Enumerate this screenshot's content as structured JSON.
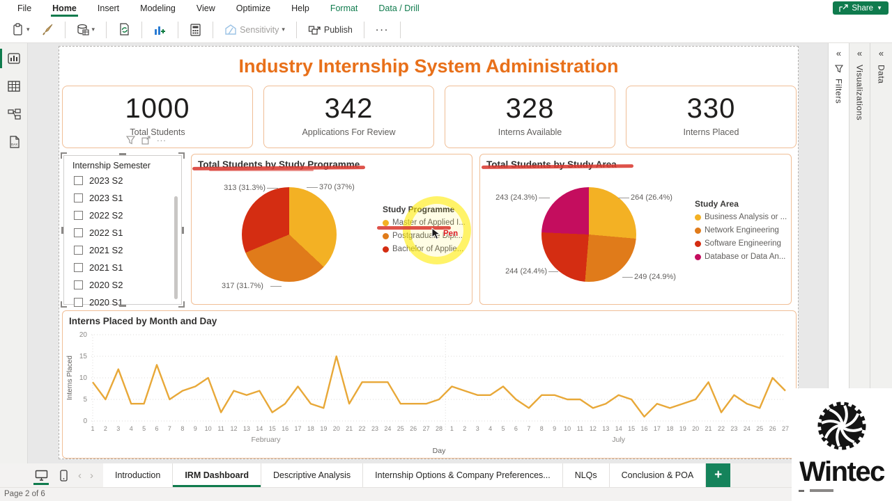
{
  "menu": {
    "items": [
      "File",
      "Home",
      "Insert",
      "Modeling",
      "View",
      "Optimize",
      "Help",
      "Format",
      "Data / Drill"
    ],
    "active_item": "Home",
    "green_items": [
      "Format",
      "Data / Drill"
    ],
    "share": "Share"
  },
  "toolbar": {
    "sensitivity": "Sensitivity",
    "publish": "Publish",
    "more": "...",
    "icons": [
      "paste-icon",
      "format-painter-icon",
      "get-data-icon",
      "refresh-icon",
      "new-visual-icon",
      "new-measure-icon",
      "sensitivity-icon",
      "publish-icon"
    ]
  },
  "panels": {
    "filters": "Filters",
    "visualizations": "Visualizations",
    "data": "Data"
  },
  "report": {
    "title": "Industry Internship System Administration",
    "kpis": [
      {
        "value": "1000",
        "label": "Total Students"
      },
      {
        "value": "342",
        "label": "Applications For Review"
      },
      {
        "value": "328",
        "label": "Interns Available"
      },
      {
        "value": "330",
        "label": "Interns Placed"
      }
    ],
    "slicer": {
      "title": "Internship Semester",
      "options": [
        "2023 S2",
        "2023 S1",
        "2022 S2",
        "2022 S1",
        "2021 S2",
        "2021 S1",
        "2020 S2",
        "2020 S1"
      ]
    },
    "annotation_pen_label": "Pen"
  },
  "chart_data": [
    {
      "type": "pie",
      "title": "Total Students by Study Programme",
      "legend_title": "Study Programme",
      "legend_position": "right",
      "slices": [
        {
          "label": "Master of Applied I...",
          "value": 370,
          "pct": 37.0,
          "color": "#F3B124",
          "callout": "370 (37%)"
        },
        {
          "label": "Postgraduate Dipl...",
          "value": 317,
          "pct": 31.7,
          "color": "#E07B1A",
          "callout": "317 (31.7%)"
        },
        {
          "label": "Bachelor of Applie...",
          "value": 313,
          "pct": 31.3,
          "color": "#D42D12",
          "callout": "313 (31.3%)"
        }
      ]
    },
    {
      "type": "pie",
      "title": "Total Students by Study Area",
      "legend_title": "Study Area",
      "legend_position": "right",
      "slices": [
        {
          "label": "Business Analysis or ...",
          "value": 264,
          "pct": 26.4,
          "color": "#F3B124",
          "callout": "264 (26.4%)"
        },
        {
          "label": "Network Engineering",
          "value": 249,
          "pct": 24.9,
          "color": "#E07B1A",
          "callout": "249 (24.9%)"
        },
        {
          "label": "Software Engineering",
          "value": 244,
          "pct": 24.4,
          "color": "#D42D12",
          "callout": "244 (24.4%)"
        },
        {
          "label": "Database or Data An...",
          "value": 243,
          "pct": 24.3,
          "color": "#C40D5E",
          "callout": "243 (24.3%)"
        }
      ]
    },
    {
      "type": "line",
      "title": "Interns Placed by Month and Day",
      "xlabel": "Day",
      "ylabel": "Interns Placed",
      "ylim": [
        0,
        20
      ],
      "yticks": [
        0,
        5,
        10,
        15,
        20
      ],
      "grid": true,
      "line_color": "#E8A838",
      "months": [
        {
          "name": "February",
          "days": [
            1,
            2,
            3,
            4,
            5,
            6,
            7,
            8,
            9,
            10,
            11,
            12,
            13,
            14,
            15,
            16,
            17,
            18,
            19,
            20,
            21,
            22,
            23,
            24,
            25,
            26,
            27,
            28
          ],
          "values": [
            9,
            5,
            12,
            4,
            4,
            13,
            5,
            7,
            8,
            10,
            2,
            7,
            6,
            7,
            2,
            4,
            8,
            4,
            3,
            15,
            4,
            9,
            9,
            9,
            4,
            4,
            4,
            5
          ]
        },
        {
          "name": "July",
          "days": [
            1,
            2,
            3,
            4,
            5,
            6,
            7,
            8,
            9,
            10,
            11,
            12,
            13,
            14,
            15,
            16,
            17,
            18,
            19,
            20,
            21,
            22,
            23,
            24,
            25,
            26,
            27
          ],
          "values": [
            8,
            7,
            6,
            6,
            8,
            5,
            3,
            6,
            6,
            5,
            5,
            3,
            4,
            6,
            5,
            1,
            4,
            3,
            4,
            5,
            9,
            2,
            6,
            4,
            3,
            10,
            7
          ]
        }
      ]
    }
  ],
  "view_tabs": {
    "tabs": [
      "Introduction",
      "IRM Dashboard",
      "Descriptive Analysis",
      "Internship Options & Company Preferences...",
      "NLQs",
      "Conclusion & POA"
    ],
    "active_tab": "IRM Dashboard",
    "add": "+"
  },
  "status_bar": {
    "page_indicator": "Page 2 of 6"
  },
  "logo": {
    "text": "Wintec"
  }
}
